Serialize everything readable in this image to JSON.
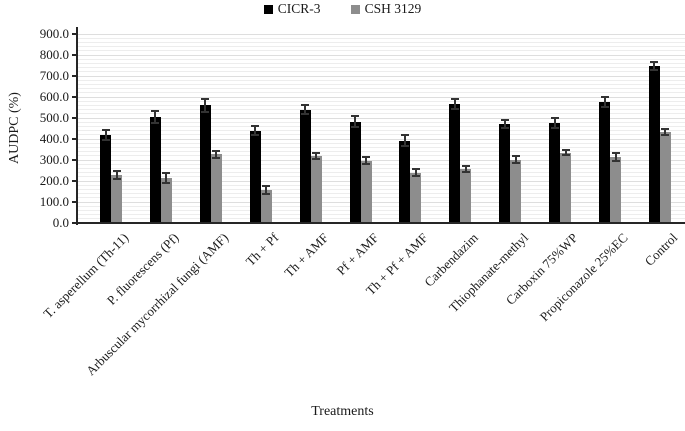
{
  "figure": {
    "background": "#ffffff"
  },
  "legend": {
    "items": [
      {
        "label": "CICR-3",
        "color": "#000000"
      },
      {
        "label": "CSH 3129",
        "color": "#8d8d8d"
      }
    ]
  },
  "chart_data": {
    "type": "bar",
    "title": "",
    "xlabel": "Treatments",
    "ylabel": "AUDPC (%)",
    "ylim": [
      0,
      900
    ],
    "ytick_step": 100,
    "ytick_labels": [
      "0.0",
      "100.0",
      "200.0",
      "300.0",
      "400.0",
      "500.0",
      "600.0",
      "700.0",
      "800.0",
      "900.0"
    ],
    "minor_gridline_step": 20,
    "grid": true,
    "legend_position": "top-center",
    "error_bars": true,
    "categories": [
      "T. asperellum (Th-11)",
      "P. fluorescens (Pf)",
      "Arbuscular mycorrhizal fungi (AMF)",
      "Th + Pf",
      "Th + AMF",
      "Pf + AMF",
      "Th + Pf + AMF",
      "Carbendazim",
      "Thiophanate-methyl",
      "Carboxin 75%WP",
      "Propiconazole 25%EC",
      "Control"
    ],
    "series": [
      {
        "name": "CICR-3",
        "color": "#000000",
        "values": [
          420,
          505,
          560,
          440,
          540,
          483,
          392,
          565,
          470,
          477,
          577,
          748
        ],
        "errors": [
          28,
          32,
          35,
          25,
          28,
          30,
          32,
          28,
          24,
          28,
          30,
          22
        ]
      },
      {
        "name": "CSH 3129",
        "color": "#8d8d8d",
        "values": [
          227,
          214,
          327,
          157,
          318,
          297,
          240,
          256,
          301,
          335,
          316,
          433
        ],
        "errors": [
          24,
          28,
          22,
          24,
          18,
          22,
          22,
          20,
          22,
          18,
          24,
          20
        ]
      }
    ]
  }
}
